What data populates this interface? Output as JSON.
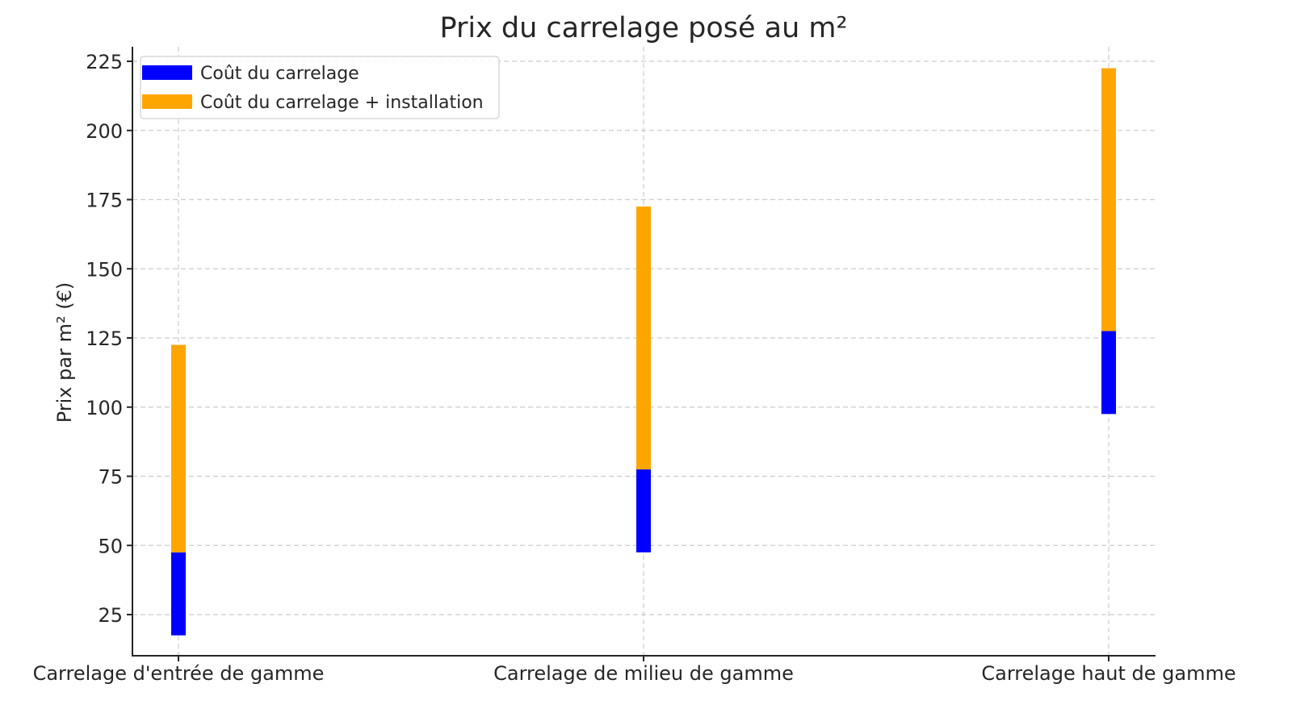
{
  "chart_data": {
    "type": "bar",
    "subtype": "floating-range-vertical",
    "title": "Prix du carrelage posé au m²",
    "xlabel": "",
    "ylabel": "Prix par m² (€)",
    "ylim": [
      10,
      230
    ],
    "yticks": [
      25,
      50,
      75,
      100,
      125,
      150,
      175,
      200,
      225
    ],
    "grid": true,
    "legend_position": "upper left",
    "categories": [
      "Carrelage d'entrée de gamme",
      "Carrelage de milieu de gamme",
      "Carrelage haut de gamme"
    ],
    "series": [
      {
        "name": "Coût du carrelage",
        "color": "#0000ff",
        "ranges": [
          [
            17.5,
            47.5
          ],
          [
            47.5,
            77.5
          ],
          [
            97.5,
            127.5
          ]
        ]
      },
      {
        "name": "Coût du carrelage + installation",
        "color": "#ffa500",
        "ranges": [
          [
            47.5,
            122.5
          ],
          [
            77.5,
            172.5
          ],
          [
            127.5,
            222.5
          ]
        ]
      }
    ]
  }
}
